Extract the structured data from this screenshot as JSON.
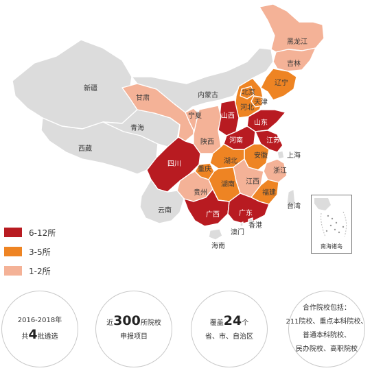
{
  "map": {
    "provinces": [
      {
        "name": "黑龙江",
        "tier": "1-2"
      },
      {
        "name": "吉林",
        "tier": "1-2"
      },
      {
        "name": "辽宁",
        "tier": "3-5"
      },
      {
        "name": "内蒙古",
        "tier": "none"
      },
      {
        "name": "北京",
        "tier": "3-5"
      },
      {
        "name": "天津",
        "tier": "3-5"
      },
      {
        "name": "河北",
        "tier": "3-5"
      },
      {
        "name": "山西",
        "tier": "6-12"
      },
      {
        "name": "山东",
        "tier": "6-12"
      },
      {
        "name": "河南",
        "tier": "6-12"
      },
      {
        "name": "江苏",
        "tier": "6-12"
      },
      {
        "name": "上海",
        "tier": "none"
      },
      {
        "name": "安徽",
        "tier": "3-5"
      },
      {
        "name": "浙江",
        "tier": "1-2"
      },
      {
        "name": "湖北",
        "tier": "3-5"
      },
      {
        "name": "湖南",
        "tier": "3-5"
      },
      {
        "name": "江西",
        "tier": "1-2"
      },
      {
        "name": "福建",
        "tier": "3-5"
      },
      {
        "name": "广东",
        "tier": "6-12"
      },
      {
        "name": "广西",
        "tier": "6-12"
      },
      {
        "name": "贵州",
        "tier": "1-2"
      },
      {
        "name": "重庆",
        "tier": "3-5"
      },
      {
        "name": "四川",
        "tier": "6-12"
      },
      {
        "name": "陕西",
        "tier": "1-2"
      },
      {
        "name": "宁夏",
        "tier": "1-2"
      },
      {
        "name": "甘肃",
        "tier": "1-2"
      },
      {
        "name": "青海",
        "tier": "none"
      },
      {
        "name": "西藏",
        "tier": "none"
      },
      {
        "name": "新疆",
        "tier": "none"
      },
      {
        "name": "云南",
        "tier": "none"
      },
      {
        "name": "台湾",
        "tier": "none"
      },
      {
        "name": "香港",
        "tier": "none"
      },
      {
        "name": "澳门",
        "tier": "none"
      },
      {
        "name": "海南",
        "tier": "none"
      }
    ],
    "colors": {
      "6-12": "#b81b21",
      "3-5": "#ee8423",
      "1-2": "#f4b297",
      "none": "#dcdcdc"
    },
    "inset_label": "南海诸岛"
  },
  "legend": [
    {
      "label": "6-12所",
      "color": "#b81b21"
    },
    {
      "label": "3-5所",
      "color": "#ee8423"
    },
    {
      "label": "1-2所",
      "color": "#f4b297"
    }
  ],
  "stats": [
    {
      "line1_pre": "2016-2018年",
      "line1_big": "",
      "line1_post": "",
      "line2_pre": "共",
      "line2_big": "4",
      "line2_post": "批遴选"
    },
    {
      "line1_pre": "近",
      "line1_big": "300",
      "line1_post": "所院校",
      "line2_pre": "申报项目",
      "line2_big": "",
      "line2_post": ""
    },
    {
      "line1_pre": "覆盖",
      "line1_big": "24",
      "line1_post": "个",
      "line2_pre": "省、市、自治区",
      "line2_big": "",
      "line2_post": ""
    }
  ],
  "partners": {
    "title": "合作院校包括：",
    "lines": [
      "211院校、重点本科院校、",
      "普通本科院校、",
      "民办院校、高职院校"
    ]
  }
}
